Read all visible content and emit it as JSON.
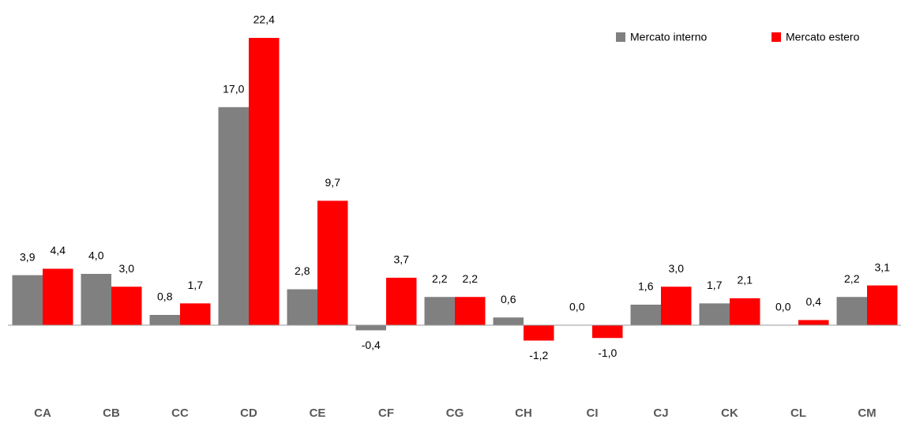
{
  "chart_data": {
    "type": "bar",
    "categories": [
      "CA",
      "CB",
      "CC",
      "CD",
      "CE",
      "CF",
      "CG",
      "CH",
      "CI",
      "CJ",
      "CK",
      "CL",
      "CM"
    ],
    "series": [
      {
        "name": "Mercato interno",
        "color": "#808080",
        "values": [
          3.9,
          4.0,
          0.8,
          17.0,
          2.8,
          -0.4,
          2.2,
          0.6,
          0.0,
          1.6,
          1.7,
          0.0,
          2.2
        ],
        "value_labels": [
          "3,9",
          "4,0",
          "0,8",
          "17,0",
          "2,8",
          "-0,4",
          "2,2",
          "0,6",
          "0,0",
          "1,6",
          "1,7",
          "0,0",
          "2,2"
        ]
      },
      {
        "name": "Mercato estero",
        "color": "#ff0000",
        "values": [
          4.4,
          3.0,
          1.7,
          22.4,
          9.7,
          3.7,
          2.2,
          -1.2,
          -1.0,
          3.0,
          2.1,
          0.4,
          3.1
        ],
        "value_labels": [
          "4,4",
          "3,0",
          "1,7",
          "22,4",
          "9,7",
          "3,7",
          "2,2",
          "-1,2",
          "-1,0",
          "3,0",
          "2,1",
          "0,4",
          "3,1"
        ]
      }
    ],
    "legend": "top-right"
  }
}
